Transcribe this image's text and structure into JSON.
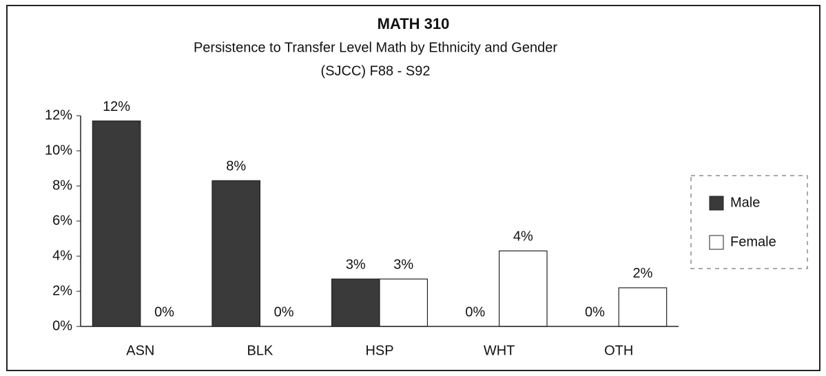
{
  "chart_data": {
    "type": "bar",
    "title": "MATH 310",
    "subtitle": "Persistence to Transfer Level Math by Ethnicity and Gender",
    "subtitle2": "(SJCC) F88 - S92",
    "categories": [
      "ASN",
      "BLK",
      "HSP",
      "WHT",
      "OTH"
    ],
    "series": [
      {
        "name": "Male",
        "color": "#3a3a3a",
        "values": [
          11.7,
          8.3,
          2.7,
          0,
          0
        ],
        "value_labels": [
          "12%",
          "8%",
          "3%",
          "0%",
          "0%"
        ]
      },
      {
        "name": "Female",
        "color": "#ffffff",
        "values": [
          0,
          0,
          2.7,
          4.3,
          2.2
        ],
        "value_labels": [
          "0%",
          "0%",
          "3%",
          "4%",
          "2%"
        ]
      }
    ],
    "ylim": [
      0,
      12
    ],
    "yticks": [
      {
        "value": 0,
        "label": "0%"
      },
      {
        "value": 2,
        "label": "2%"
      },
      {
        "value": 4,
        "label": "4%"
      },
      {
        "value": 6,
        "label": "6%"
      },
      {
        "value": 8,
        "label": "8%"
      },
      {
        "value": 10,
        "label": "10%"
      },
      {
        "value": 12,
        "label": "12%"
      }
    ],
    "legend": "right"
  }
}
